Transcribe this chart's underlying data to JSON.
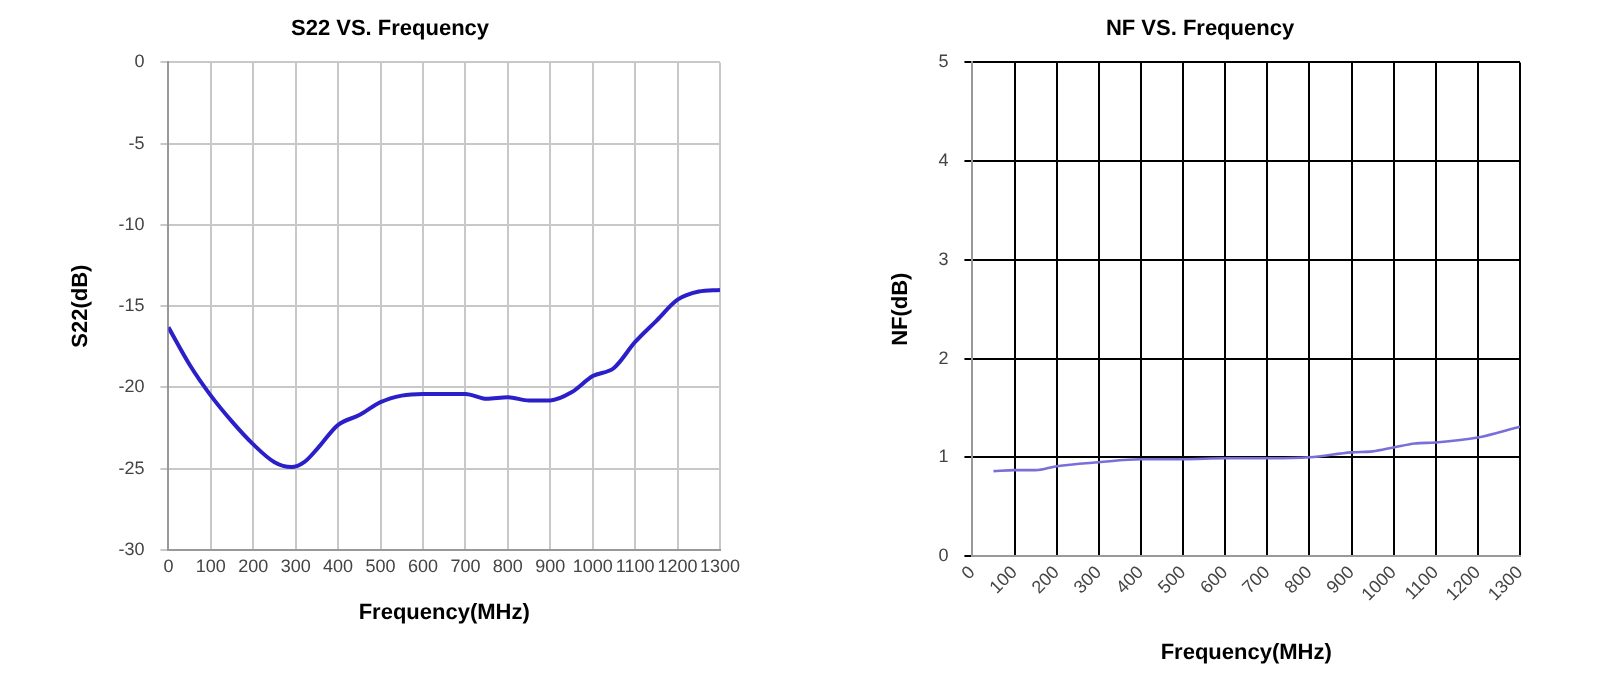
{
  "chart_data": [
    {
      "type": "line",
      "title": "S22 VS. Frequency",
      "xlabel": "Frequency(MHz)",
      "ylabel": "S22(dB)",
      "xlim": [
        0,
        1300
      ],
      "xticks": [
        0,
        100,
        200,
        300,
        400,
        500,
        600,
        700,
        800,
        900,
        1000,
        1100,
        1200,
        1300
      ],
      "ylim": [
        -30,
        0
      ],
      "yticks": [
        -30,
        -25,
        -20,
        -15,
        -10,
        -5,
        0
      ],
      "grid": true,
      "legend": false,
      "marker": "none",
      "line_style": "solid",
      "series": [
        {
          "color": "#2a1fc8",
          "x": [
            0,
            50,
            100,
            150,
            200,
            250,
            290,
            320,
            350,
            400,
            450,
            500,
            550,
            600,
            700,
            750,
            800,
            850,
            900,
            950,
            1000,
            1050,
            1100,
            1150,
            1200,
            1250,
            1300
          ],
          "values": [
            -16.3,
            -18.6,
            -20.5,
            -22.1,
            -23.5,
            -24.6,
            -24.9,
            -24.6,
            -23.8,
            -22.3,
            -21.7,
            -20.9,
            -20.5,
            -20.4,
            -20.4,
            -20.7,
            -20.6,
            -20.8,
            -20.8,
            -20.3,
            -19.3,
            -18.8,
            -17.2,
            -15.9,
            -14.6,
            -14.1,
            -14.0
          ]
        }
      ]
    },
    {
      "type": "line",
      "title": "NF VS. Frequency",
      "xlabel": "Frequency(MHz)",
      "ylabel": "NF(dB)",
      "xlim": [
        0,
        1300
      ],
      "xticks": [
        0,
        100,
        200,
        300,
        400,
        500,
        600,
        700,
        800,
        900,
        1000,
        1100,
        1200,
        1300
      ],
      "ylim": [
        0,
        5
      ],
      "yticks": [
        0,
        1,
        2,
        3,
        4,
        5
      ],
      "grid": true,
      "legend": false,
      "marker": "none",
      "line_style": "solid",
      "series": [
        {
          "color": "#7a6fd8",
          "x": [
            50,
            100,
            150,
            200,
            300,
            400,
            500,
            600,
            700,
            800,
            900,
            950,
            1000,
            1050,
            1100,
            1200,
            1300
          ],
          "values": [
            0.86,
            0.87,
            0.87,
            0.91,
            0.95,
            0.98,
            0.98,
            0.99,
            0.99,
            1.0,
            1.05,
            1.06,
            1.1,
            1.14,
            1.15,
            1.2,
            1.31
          ]
        }
      ]
    }
  ]
}
